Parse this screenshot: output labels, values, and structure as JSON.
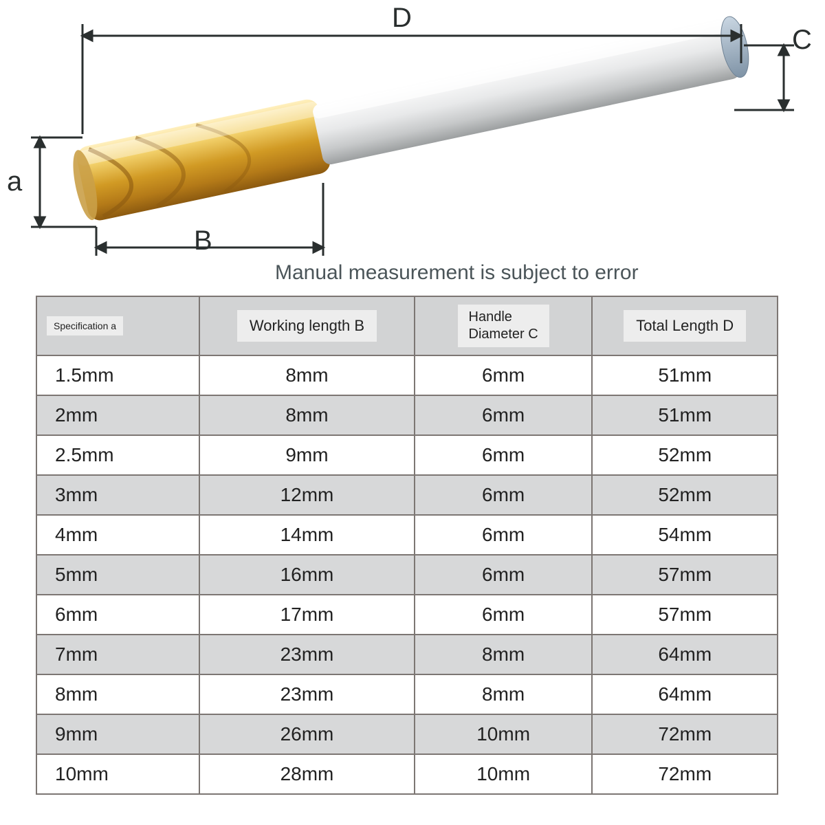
{
  "diagram": {
    "labels": {
      "a": "a",
      "B": "B",
      "C": "C",
      "D": "D"
    },
    "line_color": "#2a2f2f",
    "tool_colors": {
      "coating_light": "#f2d06a",
      "coating_dark": "#b47a18",
      "shank_light": "#ffffff",
      "shank_mid": "#d8d9da",
      "shank_dark": "#a7aaab"
    }
  },
  "note_text": "Manual measurement is subject to error",
  "table": {
    "columns": [
      "Specification a",
      "Working length B",
      "Handle Diameter C",
      "Total Length D"
    ],
    "rows": [
      [
        "1.5mm",
        "8mm",
        "6mm",
        "51mm"
      ],
      [
        "2mm",
        "8mm",
        "6mm",
        "51mm"
      ],
      [
        "2.5mm",
        "9mm",
        "6mm",
        "52mm"
      ],
      [
        "3mm",
        "12mm",
        "6mm",
        "52mm"
      ],
      [
        "4mm",
        "14mm",
        "6mm",
        "54mm"
      ],
      [
        "5mm",
        "16mm",
        "6mm",
        "57mm"
      ],
      [
        "6mm",
        "17mm",
        "6mm",
        "57mm"
      ],
      [
        "7mm",
        "23mm",
        "8mm",
        "64mm"
      ],
      [
        "8mm",
        "23mm",
        "8mm",
        "64mm"
      ],
      [
        "9mm",
        "26mm",
        "10mm",
        "72mm"
      ],
      [
        "10mm",
        "28mm",
        "10mm",
        "72mm"
      ]
    ],
    "header_bg": "#d2d3d4",
    "header_chip_bg": "#ededed",
    "row_alt_bg": "#d7d8d9",
    "row_bg": "#ffffff",
    "border_color": "#7c7673",
    "text_color": "#222222",
    "body_fontsize": 28
  }
}
